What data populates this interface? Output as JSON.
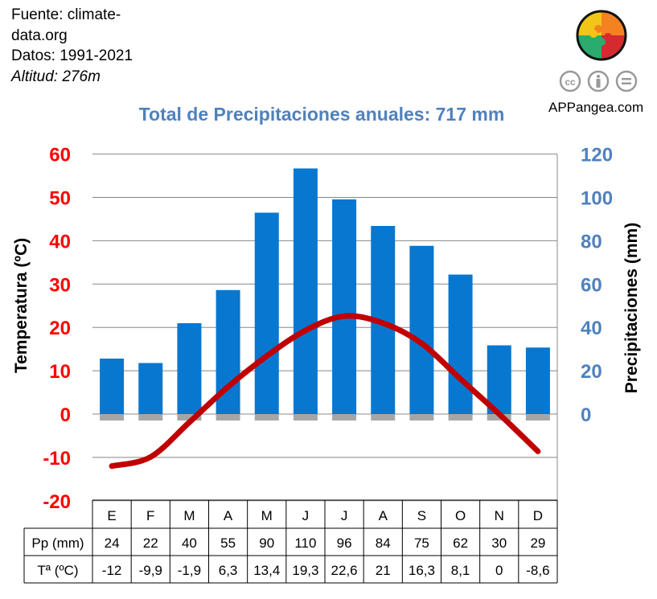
{
  "source": {
    "line1": "Fuente: climate-",
    "line2": "data.org",
    "period": "Datos: 1991-2021",
    "altitude": "Altitud: 276m"
  },
  "brand": {
    "name": "APPangea.com",
    "license_icons": [
      "cc-icon",
      "by-icon",
      "nd-icon"
    ],
    "license_text": [
      "cc",
      "i",
      "="
    ]
  },
  "colors": {
    "temp_axis": "#ff0000",
    "precip_axis": "#4f81bd",
    "bar": "#0877cf",
    "line": "#c00000",
    "title": "#4f81bd"
  },
  "chart_data": {
    "type": "bar+line",
    "title": "Total de Precipitaciones anuales: 717 mm",
    "ylabel_left": "Temperatura (ºC)",
    "ylabel_right": "Precipitaciones (mm)",
    "ylim_left": [
      -20,
      60
    ],
    "ylim_right": [
      0,
      120
    ],
    "left_ticks": [
      60,
      50,
      40,
      30,
      20,
      10,
      0,
      -10,
      -20
    ],
    "right_ticks": [
      120,
      100,
      80,
      60,
      40,
      20,
      0
    ],
    "categories": [
      "E",
      "F",
      "M",
      "A",
      "M",
      "J",
      "J",
      "A",
      "S",
      "O",
      "N",
      "D"
    ],
    "precip": [
      24,
      22,
      40,
      55,
      90,
      110,
      96,
      84,
      75,
      62,
      30,
      29
    ],
    "temp": [
      -12,
      -9.9,
      -1.9,
      6.3,
      13.4,
      19.3,
      22.6,
      21,
      16.3,
      8.1,
      0,
      -8.6
    ],
    "table": {
      "precip_label": "Pp (mm)",
      "temp_label": "Tª (ºC)",
      "precip_text": [
        "24",
        "22",
        "40",
        "55",
        "90",
        "110",
        "96",
        "84",
        "75",
        "62",
        "30",
        "29"
      ],
      "temp_text": [
        "-12",
        "-9,9",
        "-1,9",
        "6,3",
        "13,4",
        "19,3",
        "22,6",
        "21",
        "16,3",
        "8,1",
        "0",
        "-8,6"
      ]
    },
    "grid": true
  }
}
